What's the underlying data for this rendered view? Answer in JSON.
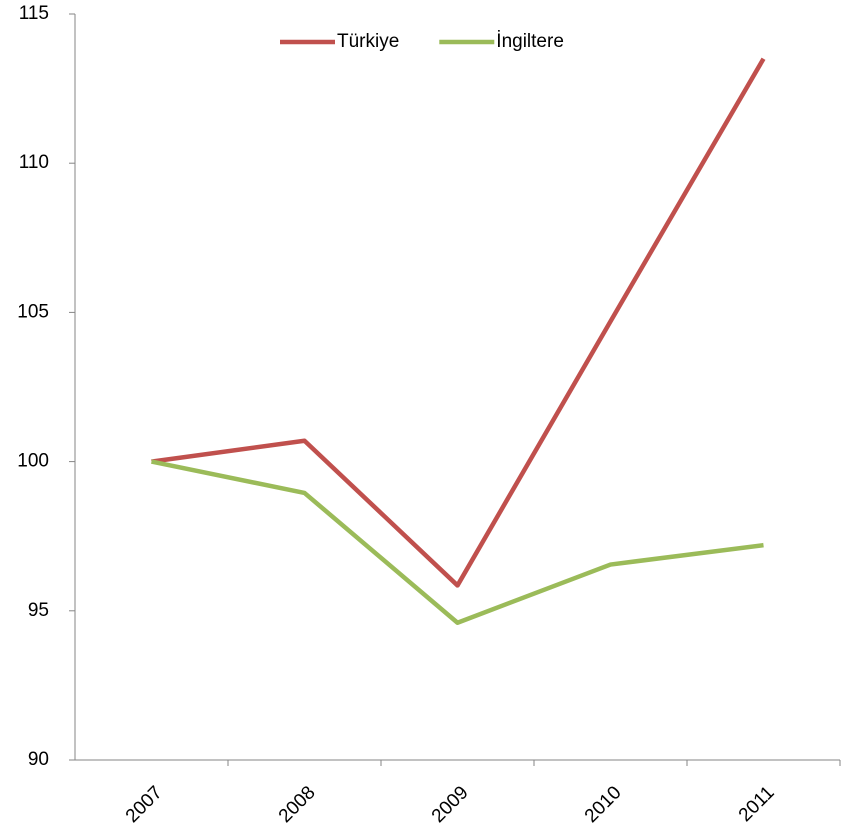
{
  "chart_data": {
    "type": "line",
    "categories": [
      "2007",
      "2008",
      "2009",
      "2010",
      "2011"
    ],
    "series": [
      {
        "name": "Türkiye",
        "color": "#c0504d",
        "values": [
          100,
          100.7,
          95.85,
          104.7,
          113.5
        ]
      },
      {
        "name": "İngiltere",
        "color": "#9bbb59",
        "values": [
          100,
          98.95,
          94.6,
          96.55,
          97.2
        ]
      }
    ],
    "ylim": [
      90,
      115
    ],
    "yticks": [
      90,
      95,
      100,
      105,
      110,
      115
    ],
    "grid": false,
    "legend": "top"
  }
}
